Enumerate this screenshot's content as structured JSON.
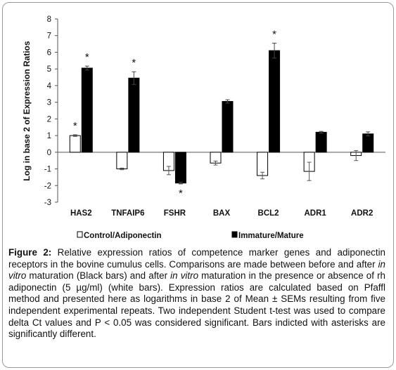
{
  "chart_data": {
    "type": "bar",
    "categories": [
      "HAS2",
      "TNFAIP6",
      "FSHR",
      "BAX",
      "BCL2",
      "ADR1",
      "ADR2"
    ],
    "ylabel": "Log in base 2 of Expression Ratios",
    "ylim": [
      -3,
      8
    ],
    "yticks": [
      -3,
      -2,
      -1,
      0,
      1,
      2,
      3,
      4,
      5,
      6,
      7,
      8
    ],
    "ytick_labels": [
      "-3",
      "-2",
      "-1",
      "0",
      "1",
      "2",
      "3",
      "4",
      "5",
      "6",
      "7",
      "8"
    ],
    "grid": false,
    "legend_position": "bottom",
    "series": [
      {
        "name": "Control/Adiponectin",
        "color": "#ffffff",
        "values": [
          1.0,
          -1.0,
          -1.1,
          -0.65,
          -1.4,
          -1.15,
          -0.2
        ],
        "errors": [
          0.05,
          0.05,
          0.25,
          0.12,
          0.2,
          0.55,
          0.3
        ],
        "significant": [
          true,
          false,
          false,
          false,
          false,
          false,
          false
        ]
      },
      {
        "name": "Immature/Mature",
        "color": "#000000",
        "values": [
          5.05,
          4.45,
          -1.85,
          3.05,
          6.1,
          1.2,
          1.1
        ],
        "errors": [
          0.12,
          0.38,
          0.05,
          0.1,
          0.45,
          0.05,
          0.12
        ],
        "significant": [
          true,
          true,
          true,
          false,
          true,
          false,
          false
        ]
      }
    ],
    "significance_marker": "*"
  },
  "caption": {
    "label": "Figure 2:",
    "parts": [
      " Relative expression ratios of competence marker genes and adiponectin receptors in the bovine cumulus cells. Comparisons are made between before and after ",
      "in vitro",
      " maturation (Black bars) and after ",
      "in vitro",
      " maturation in the presence or absence of rh adiponectin (5 µg/ml) (white bars). Expression ratios are calculated based on Pfaffl method and presented here as logarithms in base 2 of Mean ± SEMs resulting from five independent experimental repeats. Two independent Student t-test was used to compare delta Ct values and P < 0.05 was considered significant. Bars indicted with asterisks are significantly different."
    ]
  }
}
